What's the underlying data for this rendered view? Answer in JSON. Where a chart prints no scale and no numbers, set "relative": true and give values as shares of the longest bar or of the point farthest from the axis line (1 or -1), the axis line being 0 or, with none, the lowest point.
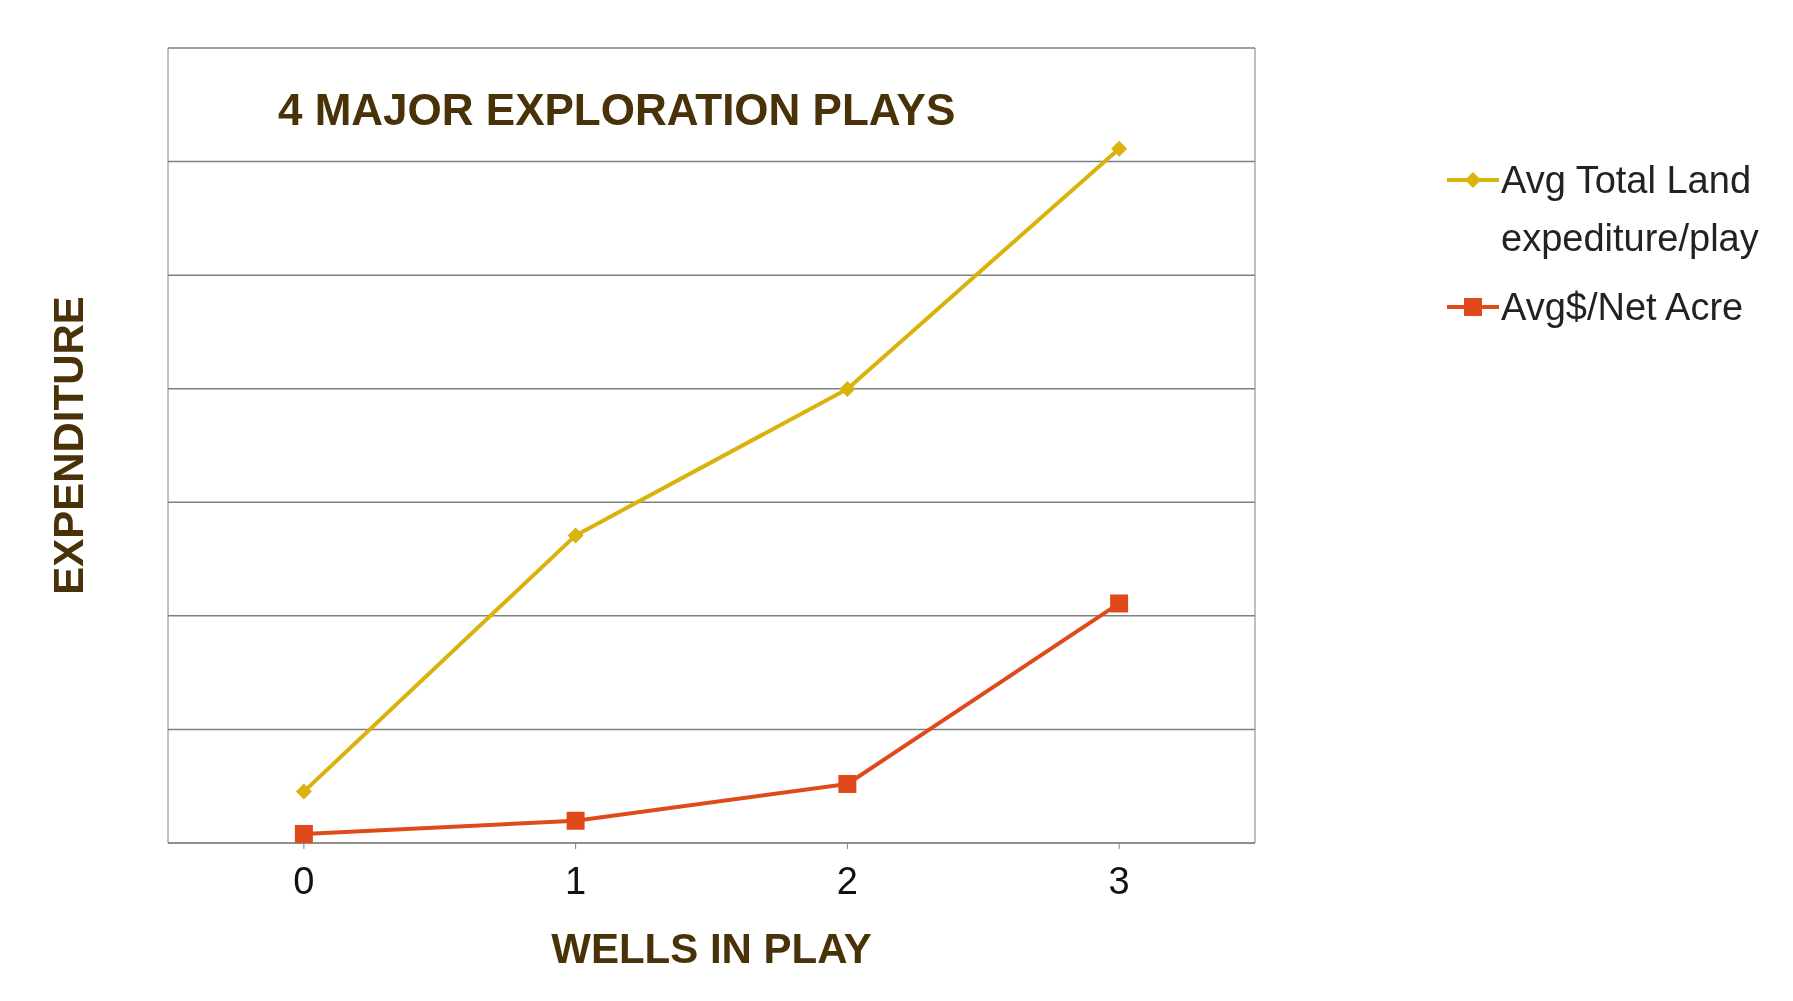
{
  "chart_data": {
    "type": "line",
    "title": "4 MAJOR EXPLORATION PLAYS",
    "xlabel": "WELLS IN PLAY",
    "ylabel": "EXPENDITURE",
    "categories": [
      "0",
      "1",
      "2",
      "3"
    ],
    "relative": true,
    "grid": "y",
    "legend": "right",
    "line_style": "solid",
    "series": [
      {
        "name": "Avg Total Land expediture/play",
        "color": "#d9b20c",
        "marker": "diamond",
        "values": [
          0.074,
          0.443,
          0.654,
          1
        ]
      },
      {
        "name": "Avg$/Net Acre",
        "color": "#e04a1a",
        "marker": "square",
        "values": [
          0.013,
          0.032,
          0.085,
          0.345
        ]
      }
    ]
  }
}
